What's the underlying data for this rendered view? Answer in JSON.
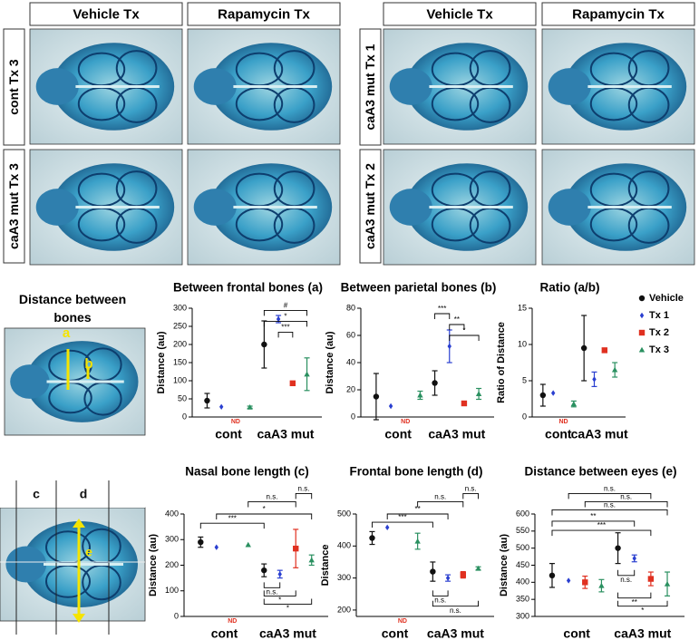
{
  "photos": {
    "column_headers": [
      "Vehicle Tx",
      "Rapamycin Tx"
    ],
    "left_rows": [
      "cont Tx 3",
      "caA3 mut Tx 3"
    ],
    "right_rows": [
      "caA3 mut Tx 1",
      "caA3 mut Tx 2"
    ]
  },
  "diagram": {
    "title": "Distance between bones",
    "labels_top": [
      "a",
      "b"
    ],
    "labels_bottom": [
      "c",
      "d",
      "e"
    ]
  },
  "chart_data": [
    {
      "type": "dot",
      "title": "Between frontal bones (a)",
      "ylabel": "Distance (au)",
      "categories": [
        "cont",
        "caA3 mut"
      ],
      "ylim": [
        0,
        300
      ],
      "yticks": [
        0,
        50,
        100,
        150,
        200,
        250,
        300
      ],
      "series": [
        {
          "color": "#111111",
          "marker": "circle",
          "values": [
            45,
            200
          ],
          "errors": [
            20,
            65
          ]
        },
        {
          "color": "#2a3fd0",
          "marker": "diamond",
          "values": [
            28,
            270
          ],
          "errors": [
            null,
            10
          ]
        },
        {
          "color": "#e03020",
          "marker": "square",
          "values": [
            null,
            93
          ],
          "errors": [
            null,
            null
          ],
          "value_labels": [
            "ND",
            null
          ]
        },
        {
          "color": "#2a9060",
          "marker": "triangle",
          "values": [
            27,
            118
          ],
          "errors": [
            3,
            45
          ]
        }
      ],
      "annotations": [
        "#",
        "*",
        "***"
      ]
    },
    {
      "type": "dot",
      "title": "Between parietal bones (b)",
      "ylabel": "Distance (au)",
      "categories": [
        "cont",
        "caA3 mut"
      ],
      "ylim": [
        0,
        80
      ],
      "yticks": [
        0,
        20,
        40,
        60,
        80
      ],
      "series": [
        {
          "color": "#111111",
          "marker": "circle",
          "values": [
            15,
            25
          ],
          "errors": [
            17,
            9
          ]
        },
        {
          "color": "#2a3fd0",
          "marker": "diamond",
          "values": [
            8,
            52
          ],
          "errors": [
            null,
            12
          ]
        },
        {
          "color": "#e03020",
          "marker": "square",
          "values": [
            null,
            10
          ],
          "errors": [
            null,
            null
          ],
          "value_labels": [
            "ND",
            null
          ]
        },
        {
          "color": "#2a9060",
          "marker": "triangle",
          "values": [
            16,
            17
          ],
          "errors": [
            3,
            4
          ]
        }
      ],
      "annotations": [
        "***",
        "**",
        "*"
      ]
    },
    {
      "type": "dot",
      "title": "Ratio (a/b)",
      "ylabel": "Ratio of Distance",
      "categories": [
        "cont",
        "caA3 mut"
      ],
      "ylim": [
        0,
        15
      ],
      "yticks": [
        0,
        5,
        10,
        15
      ],
      "legend": "right",
      "series": [
        {
          "name": "Vehicle",
          "color": "#111111",
          "marker": "circle",
          "values": [
            3,
            9.5
          ],
          "errors": [
            1.5,
            4.5
          ]
        },
        {
          "name": "Tx 1",
          "color": "#2a3fd0",
          "marker": "diamond",
          "values": [
            3.3,
            5.2
          ],
          "errors": [
            null,
            1
          ]
        },
        {
          "name": "Tx 2",
          "color": "#e03020",
          "marker": "square",
          "values": [
            null,
            9.2
          ],
          "errors": [
            null,
            0.3
          ],
          "value_labels": [
            "ND",
            null
          ]
        },
        {
          "name": "Tx 3",
          "color": "#2a9060",
          "marker": "triangle",
          "values": [
            1.8,
            6.5
          ],
          "errors": [
            0.4,
            1
          ]
        }
      ],
      "annotations": []
    },
    {
      "type": "dot",
      "title": "Nasal bone length (c)",
      "ylabel": "Distance (au)",
      "categories": [
        "cont",
        "caA3 mut"
      ],
      "ylim": [
        0,
        400
      ],
      "yticks": [
        0,
        100,
        200,
        300,
        400
      ],
      "series": [
        {
          "color": "#111111",
          "marker": "circle",
          "values": [
            290,
            180
          ],
          "errors": [
            20,
            25
          ]
        },
        {
          "color": "#2a3fd0",
          "marker": "diamond",
          "values": [
            270,
            165
          ],
          "errors": [
            null,
            15
          ]
        },
        {
          "color": "#e03020",
          "marker": "square",
          "values": [
            null,
            265
          ],
          "errors": [
            null,
            75
          ],
          "value_labels": [
            "ND",
            null
          ]
        },
        {
          "color": "#2a9060",
          "marker": "triangle",
          "values": [
            280,
            220
          ],
          "errors": [
            null,
            20
          ]
        }
      ],
      "annotations": [
        "n.s.",
        "n.s.",
        "*",
        "***",
        "n.s.",
        "*",
        "*"
      ]
    },
    {
      "type": "dot",
      "title": "Frontal bone length  (d)",
      "ylabel": "Distance",
      "categories": [
        "cont",
        "caA3 mut"
      ],
      "ylim": [
        180,
        500
      ],
      "yticks": [
        200,
        300,
        400,
        500
      ],
      "series": [
        {
          "color": "#111111",
          "marker": "circle",
          "values": [
            425,
            320
          ],
          "errors": [
            20,
            30
          ]
        },
        {
          "color": "#2a3fd0",
          "marker": "diamond",
          "values": [
            458,
            300
          ],
          "errors": [
            null,
            10
          ]
        },
        {
          "color": "#e03020",
          "marker": "square",
          "values": [
            null,
            310
          ],
          "errors": [
            null,
            10
          ],
          "value_labels": [
            "ND",
            null
          ]
        },
        {
          "color": "#2a9060",
          "marker": "triangle",
          "values": [
            415,
            330
          ],
          "errors": [
            25,
            5
          ]
        }
      ],
      "annotations": [
        "n.s.",
        "n.s.",
        "**",
        "***",
        "n.s.",
        "n.s."
      ]
    },
    {
      "type": "dot",
      "title": "Distance between eyes (e)",
      "ylabel": "Distance (au)",
      "categories": [
        "cont",
        "caA3 mut"
      ],
      "ylim": [
        300,
        600
      ],
      "yticks": [
        300,
        350,
        400,
        450,
        500,
        550,
        600
      ],
      "series": [
        {
          "color": "#111111",
          "marker": "circle",
          "values": [
            420,
            500
          ],
          "errors": [
            35,
            45
          ]
        },
        {
          "color": "#2a3fd0",
          "marker": "diamond",
          "values": [
            405,
            470
          ],
          "errors": [
            null,
            10
          ]
        },
        {
          "color": "#e03020",
          "marker": "square",
          "values": [
            400,
            410
          ],
          "errors": [
            18,
            20
          ]
        },
        {
          "color": "#2a9060",
          "marker": "triangle",
          "values": [
            390,
            395
          ],
          "errors": [
            18,
            35
          ]
        }
      ],
      "annotations": [
        "n.s.",
        "n.s.",
        "n.s.",
        "**",
        "***",
        "n.s.",
        "**",
        "*"
      ]
    }
  ]
}
